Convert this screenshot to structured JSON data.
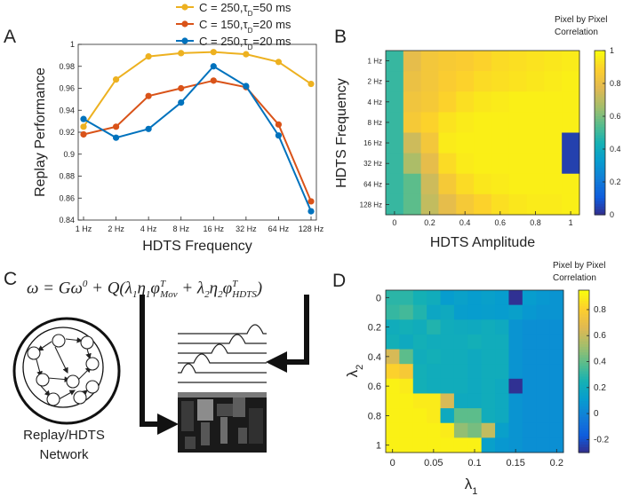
{
  "panels": {
    "a": {
      "letter": "A"
    },
    "b": {
      "letter": "B"
    },
    "c": {
      "letter": "C"
    },
    "d": {
      "letter": "D"
    }
  },
  "chart_data": [
    {
      "type": "line",
      "panel": "A",
      "title": "",
      "xlabel": "HDTS Frequency",
      "ylabel": "Replay Performance",
      "categories": [
        "1 Hz",
        "2 Hz",
        "4 Hz",
        "8 Hz",
        "16 Hz",
        "32 Hz",
        "64 Hz",
        "128 Hz"
      ],
      "ylim": [
        0.84,
        1.0
      ],
      "yticks": [
        0.84,
        0.86,
        0.88,
        0.9,
        0.92,
        0.94,
        0.96,
        0.98,
        1
      ],
      "ytick_labels": [
        "0.84",
        "0.86",
        "0.88",
        "0.9",
        "0.92",
        "0.94",
        "0.96",
        "0.98",
        "1"
      ],
      "legend_position": "top-right",
      "series": [
        {
          "name": "C = 250,τD=50 ms",
          "legend_main": "C = 250,τ",
          "legend_sub": "D",
          "legend_tail": "=50 ms",
          "color": "#EDB120",
          "values": [
            0.925,
            0.968,
            0.989,
            0.992,
            0.993,
            0.991,
            0.984,
            0.964
          ]
        },
        {
          "name": "C = 150,τD=20 ms",
          "legend_main": "C = 150,τ",
          "legend_sub": "D",
          "legend_tail": "=20 ms",
          "color": "#D95319",
          "values": [
            0.918,
            0.925,
            0.953,
            0.96,
            0.967,
            0.961,
            0.927,
            0.857
          ]
        },
        {
          "name": "C = 250,τD=20 ms",
          "legend_main": "C = 250,τ",
          "legend_sub": "D",
          "legend_tail": "=20 ms",
          "color": "#0072BD",
          "values": [
            0.932,
            0.915,
            0.923,
            0.947,
            0.98,
            0.962,
            0.917,
            0.848
          ]
        }
      ]
    },
    {
      "type": "heatmap",
      "panel": "B",
      "xlabel": "HDTS Amplitude",
      "ylabel": "HDTS Frequency",
      "colorbar_title": [
        "Pixel by Pixel",
        "Correlation"
      ],
      "colorbar_range": [
        0,
        1
      ],
      "colorbar_ticks": [
        0,
        0.2,
        0.4,
        0.6,
        0.8,
        1
      ],
      "colorbar_tick_labels": [
        "0",
        "0.2",
        "0.4",
        "0.6",
        "0.8",
        "1"
      ],
      "x_values": [
        0,
        0.1,
        0.2,
        0.3,
        0.4,
        0.5,
        0.6,
        0.7,
        0.8,
        0.9,
        1
      ],
      "x_tick_labels": [
        "0",
        "0.2",
        "0.4",
        "0.6",
        "0.8",
        "1"
      ],
      "x_tick_values": [
        0,
        0.2,
        0.4,
        0.6,
        0.8,
        1
      ],
      "row_labels": [
        "1 Hz",
        "2 Hz",
        "4 Hz",
        "8 Hz",
        "16 Hz",
        "32 Hz",
        "64 Hz",
        "128 Hz"
      ],
      "values": [
        [
          0.5,
          0.8,
          0.85,
          0.87,
          0.88,
          0.9,
          0.92,
          0.93,
          0.94,
          0.95,
          0.96
        ],
        [
          0.5,
          0.82,
          0.85,
          0.88,
          0.9,
          0.92,
          0.93,
          0.94,
          0.95,
          0.96,
          0.97
        ],
        [
          0.5,
          0.84,
          0.86,
          0.9,
          0.93,
          0.95,
          0.96,
          0.97,
          0.97,
          0.97,
          0.97
        ],
        [
          0.5,
          0.86,
          0.9,
          0.94,
          0.96,
          0.97,
          0.97,
          0.97,
          0.97,
          0.97,
          0.97
        ],
        [
          0.5,
          0.74,
          0.85,
          0.96,
          0.97,
          0.97,
          0.97,
          0.97,
          0.97,
          0.97,
          0.05
        ],
        [
          0.5,
          0.68,
          0.8,
          0.92,
          0.96,
          0.97,
          0.97,
          0.97,
          0.97,
          0.97,
          0.05
        ],
        [
          0.5,
          0.56,
          0.74,
          0.86,
          0.92,
          0.95,
          0.96,
          0.97,
          0.97,
          0.97,
          0.97
        ],
        [
          0.5,
          0.56,
          0.72,
          0.8,
          0.86,
          0.9,
          0.93,
          0.95,
          0.96,
          0.96,
          0.97
        ]
      ]
    },
    {
      "type": "heatmap",
      "panel": "D",
      "xlabel": "λ1",
      "xlabel_main": "λ",
      "xlabel_sub": "1",
      "ylabel": "λ2",
      "ylabel_main": "λ",
      "ylabel_sub": "2",
      "colorbar_title": [
        "Pixel by Pixel",
        "Correlation"
      ],
      "colorbar_range": [
        -0.3,
        0.95
      ],
      "colorbar_ticks": [
        -0.2,
        0,
        0.2,
        0.4,
        0.6,
        0.8
      ],
      "colorbar_tick_labels": [
        "-0.2",
        "0",
        "0.2",
        "0.4",
        "0.6",
        "0.8"
      ],
      "x_values": [
        0,
        0.0167,
        0.0333,
        0.05,
        0.0667,
        0.0833,
        0.1,
        0.1167,
        0.1333,
        0.15,
        0.1667,
        0.1833,
        0.2
      ],
      "x_tick_labels": [
        "0",
        "0.05",
        "0.1",
        "0.15",
        "0.2"
      ],
      "x_tick_values": [
        0,
        0.05,
        0.1,
        0.15,
        0.2
      ],
      "y_values": [
        0,
        0.1,
        0.2,
        0.3,
        0.4,
        0.5,
        0.6,
        0.7,
        0.8,
        0.9,
        1
      ],
      "y_tick_labels": [
        "0",
        "0.2",
        "0.4",
        "0.6",
        "0.8",
        "1"
      ],
      "y_tick_values": [
        0,
        0.2,
        0.4,
        0.6,
        0.8,
        1
      ],
      "values": [
        [
          0.3,
          0.3,
          0.25,
          0.22,
          0.12,
          0.15,
          0.12,
          0.14,
          0.12,
          -0.28,
          0.12,
          0.1,
          0.08
        ],
        [
          0.32,
          0.35,
          0.28,
          0.18,
          0.2,
          0.13,
          0.12,
          0.13,
          0.12,
          0.14,
          0.1,
          0.08,
          0.08
        ],
        [
          0.22,
          0.24,
          0.22,
          0.28,
          0.22,
          0.21,
          0.2,
          0.22,
          0.2,
          0.08,
          0.06,
          0.06,
          0.06
        ],
        [
          0.24,
          0.2,
          0.24,
          0.22,
          0.22,
          0.22,
          0.24,
          0.22,
          0.22,
          0.08,
          0.06,
          0.06,
          0.06
        ],
        [
          0.65,
          0.4,
          0.22,
          0.24,
          0.22,
          0.22,
          0.2,
          0.22,
          0.22,
          0.08,
          0.06,
          0.06,
          0.06
        ],
        [
          0.82,
          0.78,
          0.24,
          0.22,
          0.22,
          0.22,
          0.2,
          0.22,
          0.22,
          0.08,
          0.06,
          0.06,
          0.06
        ],
        [
          0.92,
          0.9,
          0.24,
          0.22,
          0.22,
          0.22,
          0.2,
          0.22,
          0.2,
          -0.28,
          0.06,
          0.06,
          0.06
        ],
        [
          0.92,
          0.92,
          0.9,
          0.9,
          0.65,
          0.2,
          0.2,
          0.22,
          0.2,
          0.08,
          0.06,
          0.06,
          0.06
        ],
        [
          0.92,
          0.92,
          0.92,
          0.9,
          0.2,
          0.4,
          0.4,
          0.22,
          0.2,
          0.08,
          0.06,
          0.06,
          0.06
        ],
        [
          0.92,
          0.92,
          0.92,
          0.92,
          0.9,
          0.5,
          0.45,
          0.6,
          0.14,
          0.08,
          0.06,
          0.06,
          0.06
        ],
        [
          0.92,
          0.92,
          0.92,
          0.92,
          0.92,
          0.92,
          0.92,
          0.14,
          0.1,
          0.08,
          0.06,
          0.06,
          0.06
        ]
      ]
    }
  ],
  "network": {
    "label_line1": "Replay/HDTS",
    "label_line2": "Network"
  }
}
